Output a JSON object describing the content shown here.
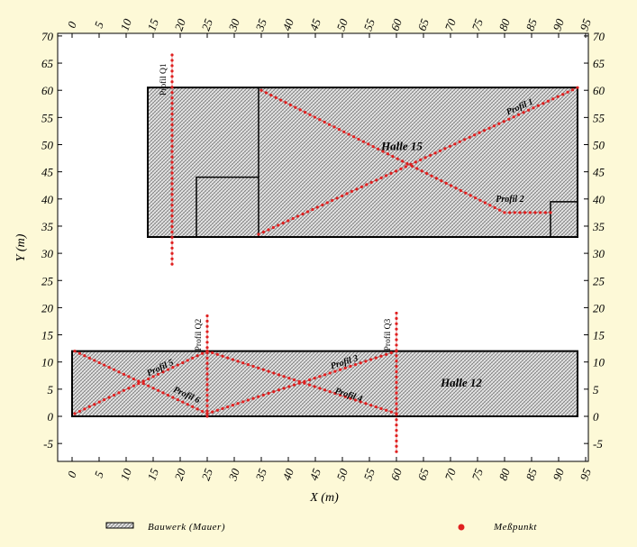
{
  "colors": {
    "background": "#fdf9d7",
    "building_fill": "#c8c8c8",
    "building_stroke": "#000000",
    "measurement_point": "#e02020",
    "profile_line": "#cc2222"
  },
  "chart_data": {
    "type": "scatter",
    "xlabel": "X (m)",
    "ylabel": "Y (m)",
    "xlim": [
      -2,
      95
    ],
    "ylim": [
      -8,
      70
    ],
    "x_ticks": [
      0,
      5,
      10,
      15,
      20,
      25,
      30,
      35,
      40,
      45,
      50,
      55,
      60,
      65,
      70,
      75,
      80,
      85,
      90,
      95
    ],
    "y_ticks": [
      -5,
      0,
      5,
      10,
      15,
      20,
      25,
      30,
      35,
      40,
      45,
      50,
      55,
      60,
      65,
      70
    ],
    "grid": false,
    "buildings": [
      {
        "name": "Halle 15",
        "outline": [
          [
            14,
            33
          ],
          [
            93.5,
            33
          ],
          [
            93.5,
            60.5
          ],
          [
            14,
            60.5
          ]
        ],
        "walls": [
          [
            [
              34.5,
              33
            ],
            [
              34.5,
              60.5
            ]
          ],
          [
            [
              23,
              33
            ],
            [
              23,
              44
            ],
            [
              34.5,
              44
            ]
          ],
          [
            [
              88.5,
              33
            ],
            [
              88.5,
              39.5
            ],
            [
              93.5,
              39.5
            ]
          ]
        ]
      },
      {
        "name": "Halle 12",
        "outline": [
          [
            0,
            0
          ],
          [
            93.5,
            0
          ],
          [
            93.5,
            12
          ],
          [
            0,
            12
          ]
        ],
        "walls": []
      }
    ],
    "hall_labels": [
      {
        "text": "Halle 15",
        "x": 61,
        "y": 49
      },
      {
        "text": "Halle 12",
        "x": 72,
        "y": 5.5
      }
    ],
    "profiles": [
      {
        "name": "Profil 1",
        "path": [
          [
            34.5,
            33.5
          ],
          [
            93.5,
            60.5
          ]
        ],
        "label_at": [
          83,
          56.5
        ],
        "angle": -24
      },
      {
        "name": "Profil 2",
        "path": [
          [
            35,
            60
          ],
          [
            80,
            37.5
          ],
          [
            88.5,
            37.5
          ]
        ],
        "label_at": [
          81,
          39.5
        ],
        "angle": 0
      },
      {
        "name": "Profil 3",
        "path": [
          [
            25,
            0.5
          ],
          [
            60,
            12
          ]
        ],
        "label_at": [
          50.5,
          9.5
        ],
        "angle": -18
      },
      {
        "name": "Profil 4",
        "path": [
          [
            25,
            12
          ],
          [
            60,
            0.5
          ]
        ],
        "label_at": [
          51,
          3.5
        ],
        "angle": 18
      },
      {
        "name": "Profil 5",
        "path": [
          [
            0.5,
            0.5
          ],
          [
            25,
            12
          ]
        ],
        "label_at": [
          16.5,
          8.5
        ],
        "angle": -25
      },
      {
        "name": "Profil 6",
        "path": [
          [
            0.5,
            12
          ],
          [
            25,
            0.5
          ]
        ],
        "label_at": [
          21,
          3.5
        ],
        "angle": 25
      },
      {
        "name": "Profil Q1",
        "path": [
          [
            18.5,
            66.5
          ],
          [
            18.5,
            28
          ]
        ],
        "label_at": [
          17.3,
          62
        ],
        "angle": -90
      },
      {
        "name": "Profil Q2",
        "path": [
          [
            25,
            18.5
          ],
          [
            25,
            0
          ]
        ],
        "label_at": [
          23.8,
          15
        ],
        "angle": -90
      },
      {
        "name": "Profil Q3",
        "path": [
          [
            60,
            19
          ],
          [
            60,
            -6.5
          ]
        ],
        "label_at": [
          58.8,
          15
        ],
        "angle": -90
      }
    ],
    "spacing": 1
  },
  "legend": {
    "building_label": "Bauwerk (Mauer)",
    "point_label": "Meßpunkt"
  }
}
